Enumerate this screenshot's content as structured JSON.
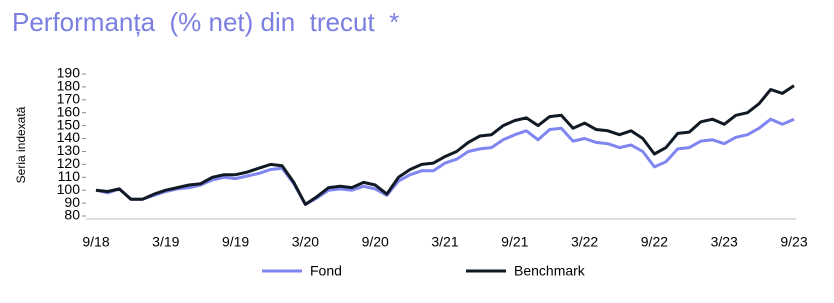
{
  "chart_data": {
    "type": "line",
    "title": "Performanța  (% net) din  trecut  *",
    "y_label": "Seria indexată",
    "categories": [
      "9/18",
      null,
      null,
      null,
      null,
      null,
      "3/19",
      null,
      null,
      null,
      null,
      null,
      "9/19",
      null,
      null,
      null,
      null,
      null,
      "3/20",
      null,
      null,
      null,
      null,
      null,
      "9/20",
      null,
      null,
      null,
      null,
      null,
      "3/21",
      null,
      null,
      null,
      null,
      null,
      "9/21",
      null,
      null,
      null,
      null,
      null,
      "3/22",
      null,
      null,
      null,
      null,
      null,
      "9/22",
      null,
      null,
      null,
      null,
      null,
      "3/23",
      null,
      null,
      null,
      null,
      null,
      "9/23"
    ],
    "series": [
      {
        "name": "Fond",
        "color": "#7f86f0",
        "values": [
          100,
          98,
          101,
          93,
          93,
          96,
          99,
          101,
          102,
          104,
          108,
          110,
          109,
          111,
          113,
          116,
          117,
          105,
          89,
          94,
          100,
          101,
          100,
          103,
          101,
          96,
          107,
          112,
          115,
          115,
          121,
          124,
          130,
          132,
          133,
          139,
          143,
          146,
          139,
          147,
          148,
          138,
          140,
          137,
          136,
          133,
          135,
          130,
          118,
          122,
          132,
          133,
          138,
          139,
          136,
          141,
          143,
          148,
          155,
          151,
          155
        ]
      },
      {
        "name": "Benchmark",
        "color": "#111a24",
        "values": [
          100,
          99,
          101,
          93,
          93,
          97,
          100,
          102,
          104,
          105,
          110,
          112,
          112,
          114,
          117,
          120,
          119,
          106,
          89,
          95,
          102,
          103,
          102,
          106,
          104,
          97,
          110,
          116,
          120,
          121,
          126,
          130,
          137,
          142,
          143,
          150,
          154,
          156,
          150,
          157,
          158,
          148,
          152,
          147,
          146,
          143,
          146,
          140,
          128,
          133,
          144,
          145,
          153,
          155,
          151,
          158,
          160,
          167,
          178,
          175,
          181
        ]
      }
    ],
    "ylim": [
      80,
      190
    ],
    "yticks": [
      80,
      90,
      100,
      110,
      120,
      130,
      140,
      150,
      160,
      170,
      180,
      190
    ]
  }
}
